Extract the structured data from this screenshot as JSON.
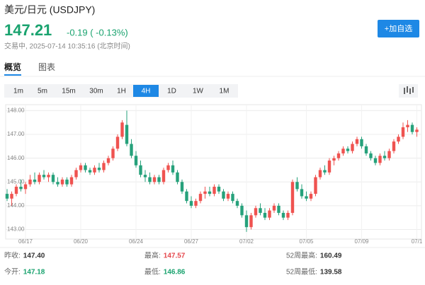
{
  "header": {
    "title": "美元/日元 (USDJPY)",
    "price": "147.21",
    "change": "-0.19 ( -0.13%)",
    "status": "交易中, 2025-07-14 10:35:16 (北京时间)",
    "button": "+加自选"
  },
  "tabs": [
    "概览",
    "图表"
  ],
  "periods": [
    "1m",
    "5m",
    "15m",
    "30m",
    "1H",
    "4H",
    "1D",
    "1W",
    "1M"
  ],
  "selected_period": "4H",
  "stats": [
    {
      "label": "昨收:",
      "value": "147.40",
      "color": "#333333"
    },
    {
      "label": "最高:",
      "value": "147.57",
      "color": "#e5484d"
    },
    {
      "label": "52周最高:",
      "value": "160.49",
      "color": "#333333"
    },
    {
      "label": "今开:",
      "value": "147.18",
      "color": "#1aa36f"
    },
    {
      "label": "最低:",
      "value": "146.86",
      "color": "#1aa36f"
    },
    {
      "label": "52周最低:",
      "value": "139.58",
      "color": "#333333"
    }
  ],
  "chart_data": {
    "type": "candlestick",
    "up_color": "#ef5350",
    "down_color": "#26a17b",
    "grid": true,
    "ylim": [
      142.6,
      148.25
    ],
    "yticks": [
      {
        "value": 143,
        "label": "143.00"
      },
      {
        "value": 144,
        "label": "144.00"
      },
      {
        "value": 145,
        "label": "145.00"
      },
      {
        "value": 146,
        "label": "146.00"
      },
      {
        "value": 147,
        "label": "147.00"
      },
      {
        "value": 148,
        "label": "148.00"
      }
    ],
    "categories": [
      null,
      null,
      null,
      null,
      "06/17",
      null,
      null,
      null,
      null,
      null,
      null,
      null,
      null,
      null,
      null,
      null,
      "06/20",
      null,
      null,
      null,
      null,
      null,
      null,
      null,
      null,
      null,
      null,
      null,
      "06/24",
      null,
      null,
      null,
      null,
      null,
      null,
      null,
      null,
      null,
      null,
      null,
      "06/27",
      null,
      null,
      null,
      null,
      null,
      null,
      null,
      null,
      null,
      null,
      null,
      "07/02",
      null,
      null,
      null,
      null,
      null,
      null,
      null,
      null,
      null,
      null,
      null,
      null,
      "07/05",
      null,
      null,
      null,
      null,
      null,
      null,
      null,
      null,
      null,
      null,
      null,
      "07/09",
      null,
      null,
      null,
      null,
      null,
      null,
      null,
      null,
      null,
      null,
      null,
      "07/1"
    ],
    "open": [
      144.5,
      144.3,
      144.5,
      144.8,
      144.7,
      144.9,
      145.1,
      145.0,
      145.3,
      145.2,
      145.3,
      145.0,
      144.9,
      145.1,
      144.9,
      145.2,
      145.5,
      145.7,
      145.5,
      145.4,
      145.6,
      145.5,
      145.8,
      146.0,
      146.4,
      146.9,
      147.4,
      146.6,
      146.1,
      145.7,
      145.3,
      145.2,
      145.0,
      145.2,
      145.0,
      145.5,
      145.7,
      145.4,
      145.0,
      144.6,
      144.2,
      144.0,
      144.2,
      144.5,
      144.6,
      144.5,
      144.8,
      144.6,
      144.3,
      144.5,
      144.2,
      144.0,
      143.6,
      143.1,
      143.6,
      143.9,
      143.7,
      143.5,
      143.8,
      144.0,
      143.7,
      143.5,
      143.7,
      145.0,
      144.7,
      144.4,
      144.3,
      144.5,
      145.2,
      145.5,
      145.4,
      145.9,
      146.0,
      146.2,
      146.4,
      146.3,
      146.6,
      146.8,
      146.5,
      146.2,
      146.0,
      145.8,
      146.1,
      146.0,
      146.3,
      146.7,
      146.9,
      147.3,
      147.4,
      147.1
    ],
    "high": [
      144.7,
      144.6,
      144.9,
      145.1,
      145.0,
      145.3,
      145.4,
      145.4,
      145.5,
      145.4,
      145.4,
      145.2,
      145.2,
      145.2,
      145.3,
      145.6,
      145.8,
      145.8,
      145.6,
      145.7,
      145.8,
      145.9,
      146.1,
      146.5,
      147.0,
      147.6,
      148.0,
      146.8,
      146.3,
      145.9,
      145.5,
      145.4,
      145.3,
      145.3,
      145.6,
      145.8,
      145.9,
      145.5,
      145.1,
      144.7,
      144.4,
      144.3,
      144.6,
      144.8,
      144.8,
      144.9,
      144.9,
      144.7,
      144.6,
      144.6,
      144.3,
      144.1,
      143.8,
      143.7,
      144.0,
      144.1,
      143.9,
      143.9,
      144.1,
      144.1,
      143.8,
      143.8,
      145.1,
      145.2,
      144.9,
      144.6,
      144.6,
      145.3,
      145.6,
      145.7,
      146.0,
      146.1,
      146.3,
      146.5,
      146.5,
      146.7,
      146.9,
      146.9,
      146.6,
      146.3,
      146.1,
      146.2,
      146.3,
      146.4,
      146.8,
      147.0,
      147.5,
      147.6,
      147.5,
      147.3
    ],
    "low": [
      144.2,
      144.0,
      144.4,
      144.6,
      144.5,
      144.8,
      144.9,
      144.9,
      145.1,
      145.0,
      144.9,
      144.8,
      144.8,
      144.8,
      144.8,
      145.1,
      145.4,
      145.4,
      145.3,
      145.3,
      145.4,
      145.4,
      145.7,
      145.9,
      146.3,
      146.8,
      146.5,
      146.0,
      145.6,
      145.2,
      145.0,
      144.9,
      144.9,
      144.9,
      144.9,
      145.4,
      145.3,
      144.9,
      144.5,
      144.1,
      143.9,
      143.9,
      144.1,
      144.3,
      144.4,
      144.4,
      144.5,
      144.2,
      144.2,
      144.1,
      143.9,
      143.5,
      142.9,
      143.0,
      143.5,
      143.6,
      143.4,
      143.4,
      143.7,
      143.6,
      143.4,
      143.4,
      143.6,
      144.6,
      144.3,
      144.2,
      144.2,
      144.4,
      145.1,
      145.3,
      145.3,
      145.7,
      145.9,
      146.1,
      146.2,
      146.2,
      146.5,
      146.4,
      146.1,
      145.9,
      145.7,
      145.7,
      145.9,
      145.9,
      146.2,
      146.6,
      146.8,
      147.1,
      147.0,
      146.9
    ],
    "close": [
      144.3,
      144.5,
      144.8,
      144.7,
      144.9,
      145.1,
      145.0,
      145.3,
      145.2,
      145.3,
      145.0,
      144.9,
      145.1,
      144.9,
      145.2,
      145.5,
      145.7,
      145.5,
      145.4,
      145.6,
      145.5,
      145.8,
      146.0,
      146.4,
      146.9,
      147.5,
      146.6,
      146.1,
      145.7,
      145.3,
      145.2,
      145.0,
      145.2,
      145.0,
      145.5,
      145.7,
      145.4,
      145.0,
      144.6,
      144.2,
      144.0,
      144.2,
      144.5,
      144.6,
      144.5,
      144.8,
      144.6,
      144.3,
      144.5,
      144.2,
      144.0,
      143.6,
      143.1,
      143.6,
      143.9,
      143.7,
      143.5,
      143.8,
      144.0,
      143.7,
      143.5,
      143.7,
      145.0,
      144.7,
      144.4,
      144.3,
      144.5,
      145.2,
      145.5,
      145.4,
      145.9,
      146.0,
      146.2,
      146.4,
      146.3,
      146.6,
      146.8,
      146.5,
      146.2,
      146.0,
      145.8,
      146.1,
      146.0,
      146.3,
      146.7,
      146.9,
      147.3,
      147.4,
      147.1,
      147.2
    ]
  }
}
